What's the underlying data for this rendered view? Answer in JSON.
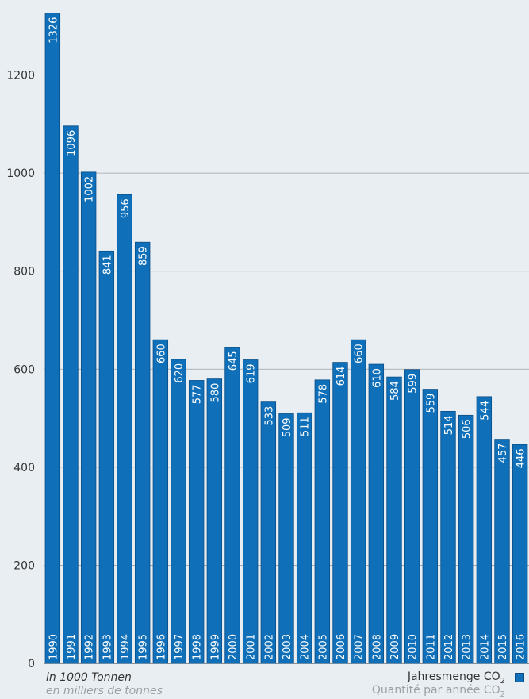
{
  "chart_data": {
    "type": "bar",
    "categories": [
      "1990",
      "1991",
      "1992",
      "1993",
      "1994",
      "1995",
      "1996",
      "1997",
      "1998",
      "1999",
      "2000",
      "2001",
      "2002",
      "2003",
      "2004",
      "2005",
      "2006",
      "2007",
      "2008",
      "2009",
      "2010",
      "2011",
      "2012",
      "2013",
      "2014",
      "2015",
      "2016"
    ],
    "series": [
      {
        "name": "Jahresmenge CO2",
        "values": [
          1326,
          1096,
          1002,
          841,
          956,
          859,
          660,
          620,
          577,
          580,
          645,
          619,
          533,
          509,
          511,
          578,
          614,
          660,
          610,
          584,
          599,
          559,
          514,
          506,
          544,
          457,
          446
        ]
      }
    ],
    "y_ticks": [
      "0",
      "200",
      "400",
      "600",
      "800",
      "1000",
      "1200"
    ],
    "ylim": [
      0,
      1340
    ],
    "grid": true,
    "unit_de": "in 1000 Tonnen",
    "unit_fr": "en milliers de tonnes",
    "legend_de": "Jahresmenge CO",
    "legend_fr": "Quantité par année CO",
    "legend_sub": "2",
    "legend_position": "bottom-right",
    "colors": {
      "bar": "#0f6fb8",
      "bar_border": "#0a4f87",
      "grid": "#9aa0a6",
      "background": "#e9eef2"
    }
  }
}
